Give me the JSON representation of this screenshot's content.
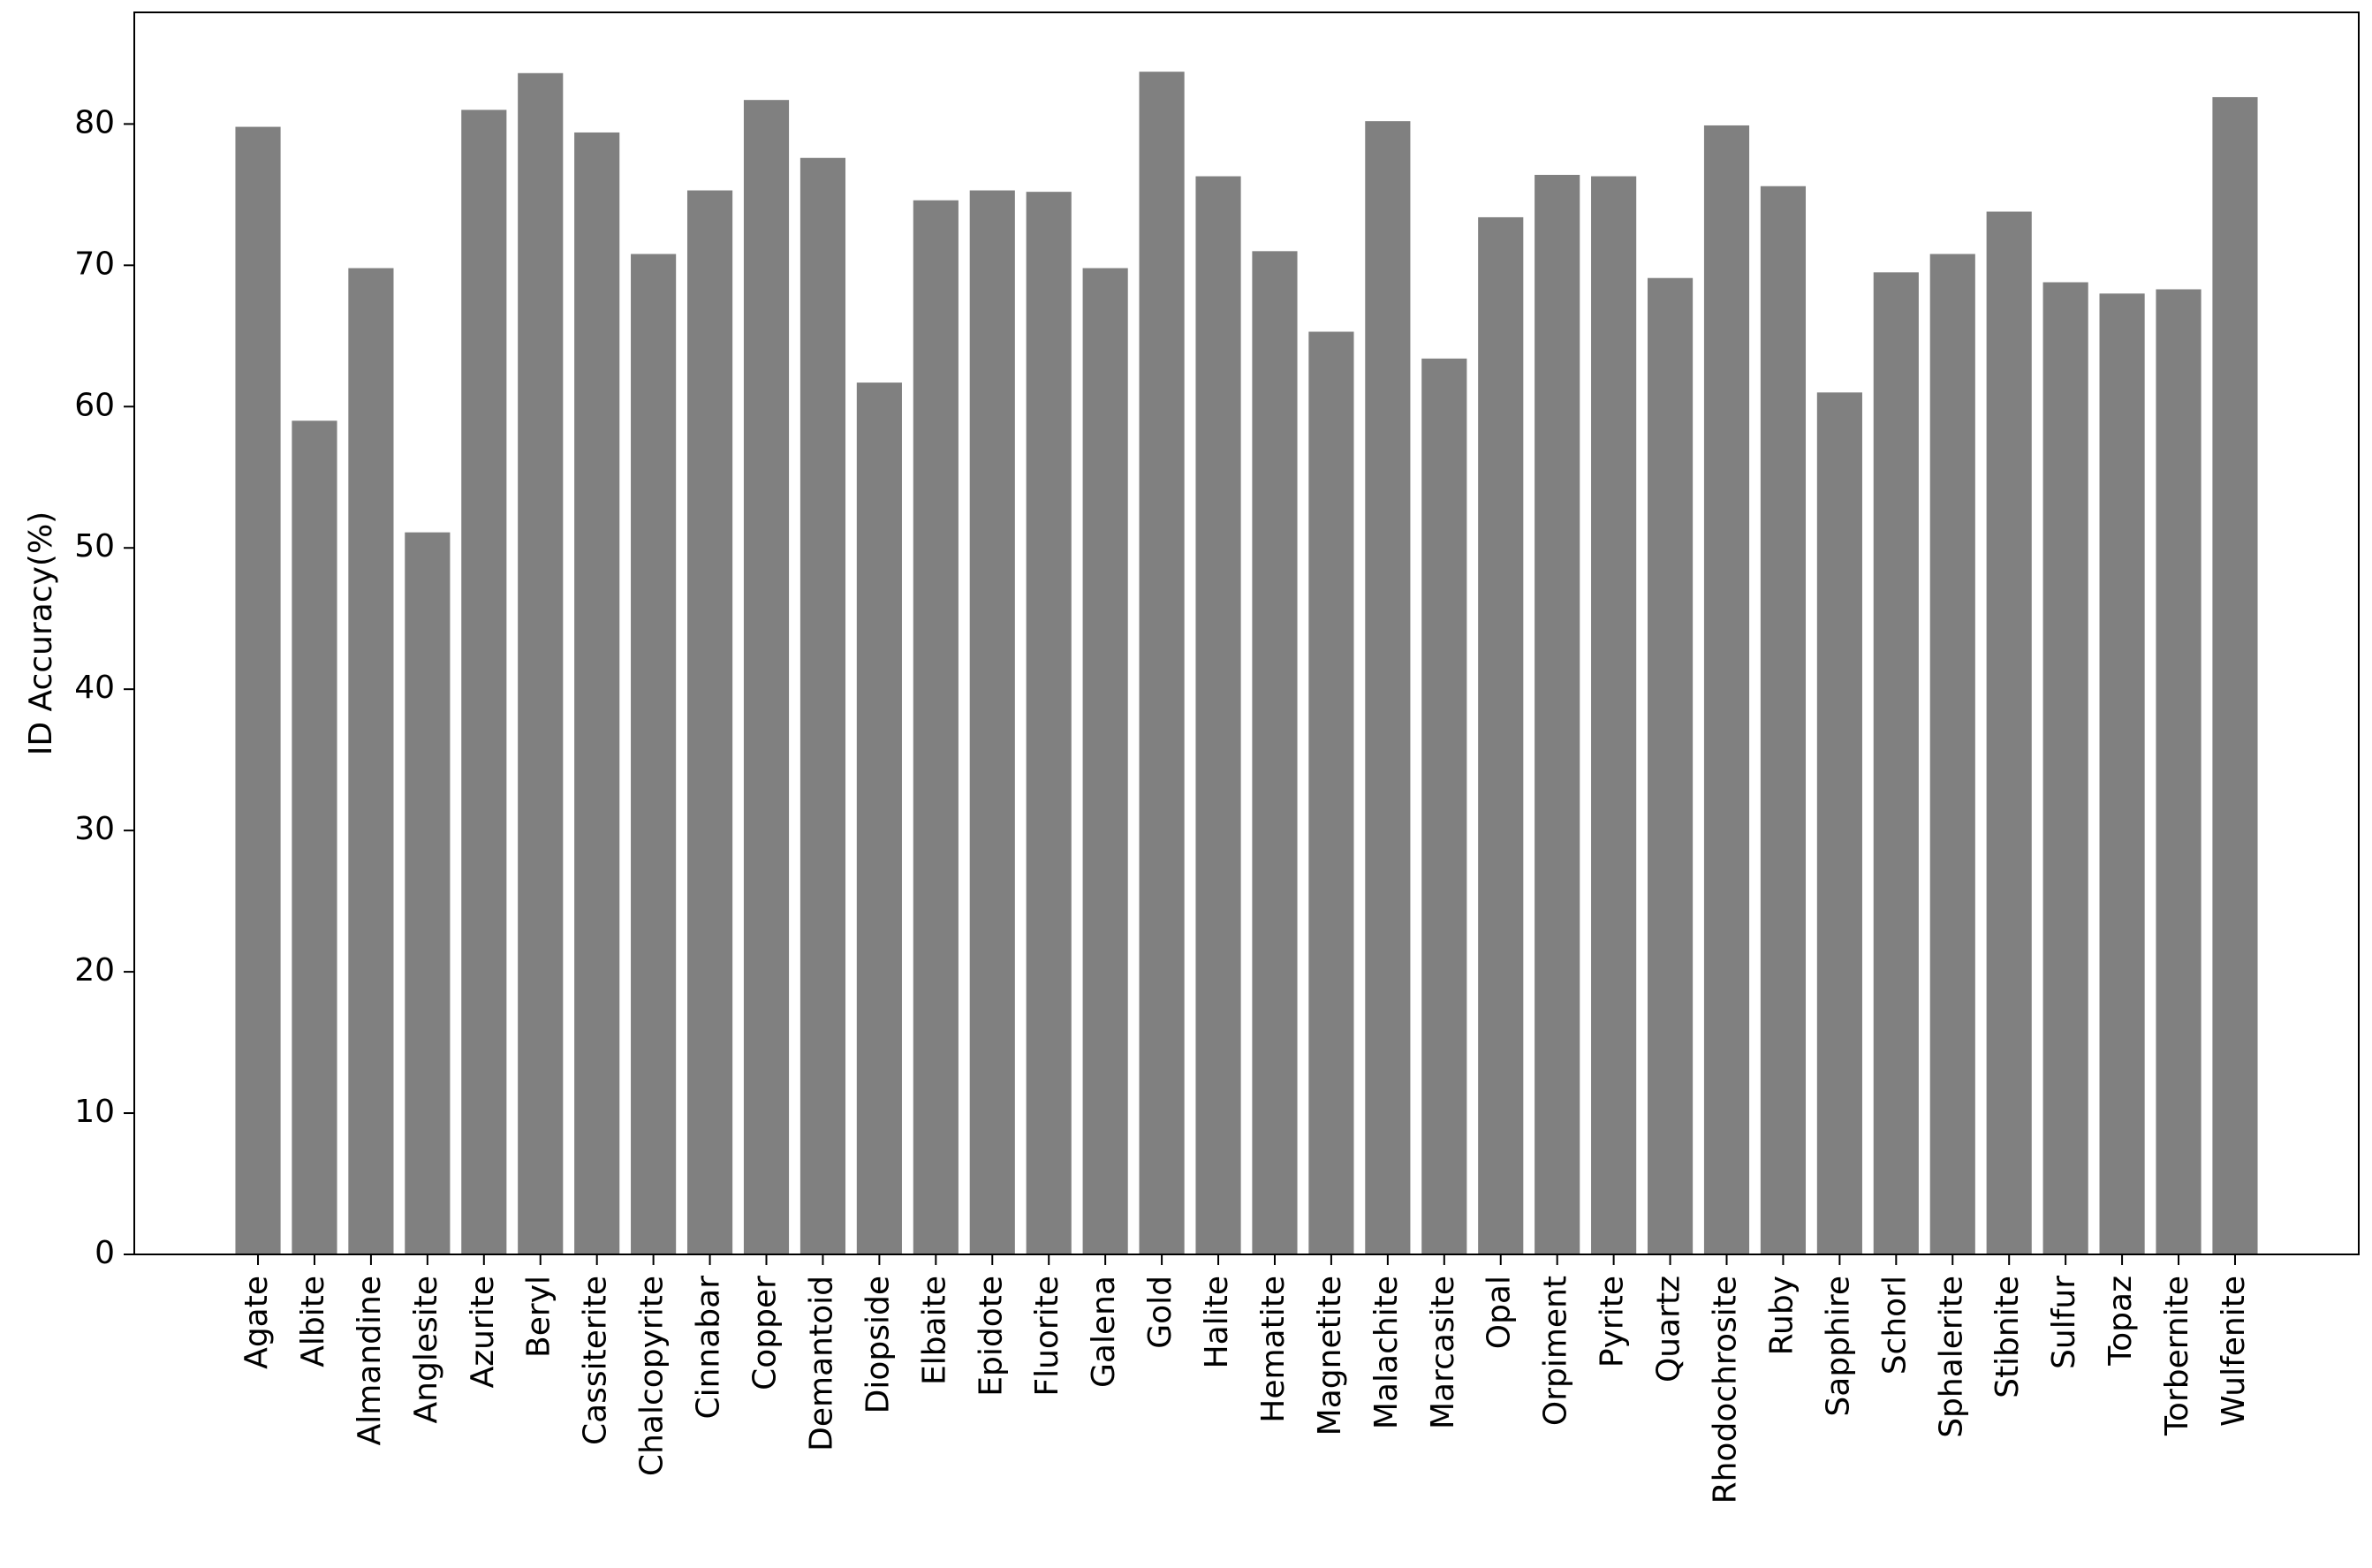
{
  "chart_data": {
    "type": "bar",
    "y_label": "ID Accuracy(%)",
    "categories": [
      "Agate",
      "Albite",
      "Almandine",
      "Anglesite",
      "Azurite",
      "Beryl",
      "Cassiterite",
      "Chalcopyrite",
      "Cinnabar",
      "Copper",
      "Demantoid",
      "Diopside",
      "Elbaite",
      "Epidote",
      "Fluorite",
      "Galena",
      "Gold",
      "Halite",
      "Hematite",
      "Magnetite",
      "Malachite",
      "Marcasite",
      "Opal",
      "Orpiment",
      "Pyrite",
      "Quartz",
      "Rhodochrosite",
      "Ruby",
      "Sapphire",
      "Schorl",
      "Sphalerite",
      "Stibnite",
      "Sulfur",
      "Topaz",
      "Torbernite",
      "Wulfenite"
    ],
    "values": [
      79.8,
      59.0,
      69.8,
      51.1,
      81.0,
      83.6,
      79.4,
      70.8,
      75.3,
      81.7,
      77.6,
      61.7,
      74.6,
      75.3,
      75.2,
      69.8,
      83.7,
      76.3,
      71.0,
      65.3,
      80.2,
      63.4,
      73.4,
      76.4,
      76.3,
      69.1,
      79.9,
      75.6,
      61.0,
      69.5,
      70.8,
      73.8,
      68.8,
      68.0,
      68.3,
      81.9
    ],
    "color": "#808080",
    "ylim": [
      0,
      87.9
    ],
    "yticks": [
      0,
      10,
      20,
      30,
      40,
      50,
      60,
      70,
      80
    ],
    "grid": false
  }
}
